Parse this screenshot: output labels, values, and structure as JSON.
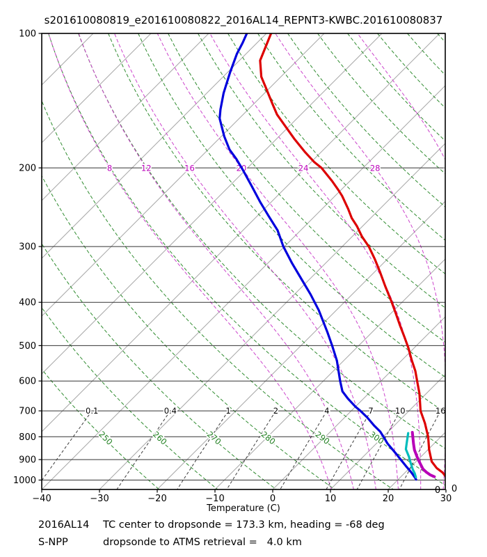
{
  "title": "s201610080819_e201610080822_2016AL14_REPNT3-KWBC.201610080837",
  "footer": {
    "line1": {
      "left": "2016AL14",
      "right": "TC center to dropsonde = 173.3 km, heading = -68 deg"
    },
    "line2": {
      "left": "S-NPP",
      "right": "dropsonde to ATMS retrieval =   4.0 km"
    }
  },
  "axes": {
    "xlabel": "Temperature (C)",
    "x_ticks": [
      {
        "label": "−40",
        "value": -40
      },
      {
        "label": "−30",
        "value": -30
      },
      {
        "label": "−20",
        "value": -20
      },
      {
        "label": "−10",
        "value": -10
      },
      {
        "label": "0",
        "value": 0
      },
      {
        "label": "10",
        "value": 10
      },
      {
        "label": "20",
        "value": 20
      },
      {
        "label": "30",
        "value": 30
      }
    ],
    "y_ticks": [
      {
        "label": "100",
        "value": 100
      },
      {
        "label": "200",
        "value": 200
      },
      {
        "label": "300",
        "value": 300
      },
      {
        "label": "400",
        "value": 400
      },
      {
        "label": "500",
        "value": 500
      },
      {
        "label": "600",
        "value": 600
      },
      {
        "label": "700",
        "value": 700
      },
      {
        "label": "800",
        "value": 800
      },
      {
        "label": "900",
        "value": 900
      },
      {
        "label": "1000",
        "value": 1000
      }
    ],
    "corner_labels": [
      "0",
      "0"
    ]
  },
  "colors": {
    "frame": "#000000",
    "isobar": "#333333",
    "isotherm": "#a8a8a8",
    "dry_adiabat": "#2e8b2e",
    "dry_label": "#1e7e1e",
    "moist_adiabat": "#cc44cc",
    "moist_label": "#bb00bb",
    "mixing_line": "#3a3a3a",
    "mixing_label": "#000000",
    "red_curve": "#dd0000",
    "blue_curve": "#0000dd",
    "cyan_curve": "#00bcbc",
    "purple_curve": "#b800b8"
  },
  "chart_data": {
    "type": "line",
    "title": "s201610080819_e201610080822_2016AL14_REPNT3-KWBC.201610080837",
    "xlabel": "Temperature (C)",
    "x_range_c": [
      -40,
      30
    ],
    "pressure_range_hpa": [
      100,
      1050
    ],
    "skew_deg": 45,
    "grid": {
      "isobars_hpa": [
        100,
        200,
        300,
        400,
        500,
        600,
        700,
        800,
        900,
        1000
      ],
      "isotherms_c": [
        -120,
        -110,
        -100,
        -90,
        -80,
        -70,
        -60,
        -50,
        -40,
        -30,
        -20,
        -10,
        0,
        10,
        20,
        30
      ],
      "dry_adiabats_k": [
        250,
        260,
        270,
        280,
        290,
        300,
        310,
        320,
        330,
        340,
        350,
        360,
        370,
        380,
        390,
        400,
        410,
        420,
        430
      ],
      "dry_adiabat_labels_k": [
        250,
        260,
        270,
        280,
        290,
        300
      ],
      "dry_label_pressure_hpa": 805,
      "moist_adiabats_c": [
        8,
        12,
        16,
        20,
        24,
        28,
        32
      ],
      "moist_label_pressure_hpa": 200,
      "mixing_ratio_gkg": [
        0.1,
        0.4,
        1,
        2,
        4,
        7,
        10,
        16
      ],
      "mixing_label_pressure_hpa": 700
    },
    "series": [
      {
        "name": "red_temperature_profile",
        "color_key": "red_curve",
        "width": 3.2,
        "points_p_t": [
          [
            100,
            -79.2
          ],
          [
            115,
            -76.4
          ],
          [
            125,
            -73.4
          ],
          [
            134,
            -70.1
          ],
          [
            144,
            -66.7
          ],
          [
            152,
            -64.1
          ],
          [
            161,
            -60.8
          ],
          [
            172,
            -57.0
          ],
          [
            184,
            -52.9
          ],
          [
            194,
            -49.5
          ],
          [
            200,
            -47.2
          ],
          [
            214,
            -43.1
          ],
          [
            224,
            -40.5
          ],
          [
            231,
            -38.8
          ],
          [
            247,
            -35.5
          ],
          [
            259,
            -33.3
          ],
          [
            270,
            -31.0
          ],
          [
            285,
            -28.3
          ],
          [
            300,
            -25.4
          ],
          [
            320,
            -22.2
          ],
          [
            341,
            -19.2
          ],
          [
            368,
            -15.7
          ],
          [
            398,
            -12.0
          ],
          [
            423,
            -9.2
          ],
          [
            450,
            -6.4
          ],
          [
            478,
            -3.6
          ],
          [
            506,
            -1.0
          ],
          [
            539,
            1.7
          ],
          [
            570,
            4.2
          ],
          [
            604,
            6.5
          ],
          [
            640,
            8.8
          ],
          [
            700,
            12.0
          ],
          [
            746,
            14.9
          ],
          [
            800,
            17.8
          ],
          [
            855,
            20.2
          ],
          [
            909,
            22.7
          ],
          [
            940,
            24.7
          ],
          [
            962,
            26.5
          ],
          [
            983,
            27.8
          ]
        ]
      },
      {
        "name": "blue_dewpoint_profile",
        "color_key": "blue_curve",
        "width": 3.2,
        "points_p_t": [
          [
            100,
            -83.4
          ],
          [
            105,
            -82.5
          ],
          [
            111,
            -81.6
          ],
          [
            122,
            -79.6
          ],
          [
            136,
            -77.1
          ],
          [
            148,
            -74.8
          ],
          [
            155,
            -73.4
          ],
          [
            170,
            -69.5
          ],
          [
            182,
            -66.3
          ],
          [
            191,
            -63.5
          ],
          [
            202,
            -60.5
          ],
          [
            219,
            -56.3
          ],
          [
            239,
            -51.8
          ],
          [
            256,
            -48.1
          ],
          [
            276,
            -44.0
          ],
          [
            300,
            -40.2
          ],
          [
            327,
            -35.8
          ],
          [
            355,
            -31.4
          ],
          [
            384,
            -27.2
          ],
          [
            417,
            -23.0
          ],
          [
            466,
            -17.8
          ],
          [
            500,
            -14.6
          ],
          [
            540,
            -11.2
          ],
          [
            600,
            -7.1
          ],
          [
            633,
            -4.9
          ],
          [
            657,
            -2.7
          ],
          [
            685,
            0.0
          ],
          [
            700,
            1.6
          ],
          [
            724,
            3.9
          ],
          [
            755,
            6.5
          ],
          [
            779,
            8.6
          ],
          [
            805,
            10.4
          ],
          [
            828,
            11.9
          ],
          [
            872,
            15.1
          ],
          [
            900,
            17.0
          ],
          [
            930,
            19.0
          ],
          [
            962,
            21.1
          ],
          [
            986,
            22.5
          ],
          [
            997,
            23.1
          ]
        ]
      },
      {
        "name": "cyan_low_level_dewpoint",
        "color_key": "cyan_curve",
        "width": 3.2,
        "points_p_t": [
          [
            785,
            13.7
          ],
          [
            830,
            15.3
          ],
          [
            853,
            16.1
          ],
          [
            888,
            18.0
          ],
          [
            903,
            18.7
          ],
          [
            947,
            20.8
          ],
          [
            966,
            21.8
          ],
          [
            986,
            22.7
          ]
        ]
      },
      {
        "name": "purple_low_level_temperature",
        "color_key": "purple_curve",
        "width": 4,
        "points_p_t": [
          [
            782,
            14.3
          ],
          [
            830,
            16.5
          ],
          [
            856,
            17.7
          ],
          [
            888,
            19.4
          ],
          [
            903,
            20.2
          ],
          [
            945,
            22.5
          ],
          [
            960,
            23.6
          ],
          [
            973,
            24.7
          ],
          [
            983,
            25.8
          ]
        ]
      }
    ]
  }
}
